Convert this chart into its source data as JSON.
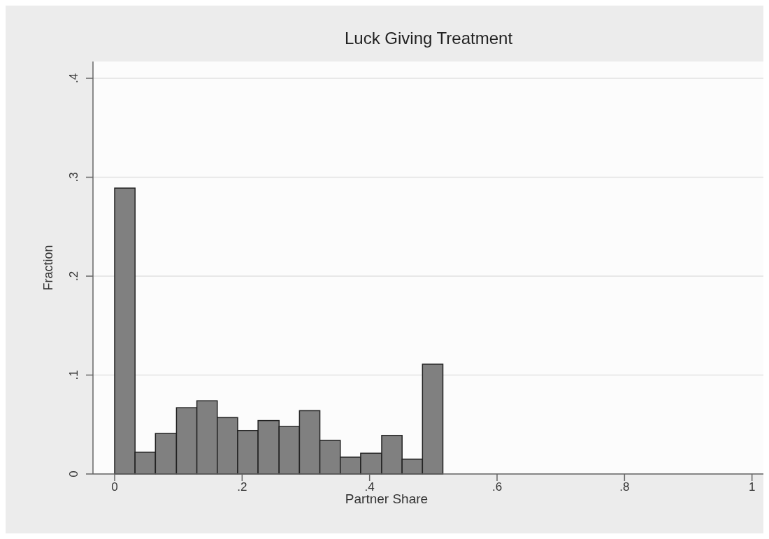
{
  "chart_data": {
    "type": "histogram",
    "title": "Luck Giving Treatment",
    "xlabel": "Partner Share",
    "ylabel": "Fraction",
    "bins": [
      0,
      0.032,
      0.064,
      0.097,
      0.129,
      0.161,
      0.193,
      0.225,
      0.258,
      0.29,
      0.322,
      0.354,
      0.386,
      0.419,
      0.451,
      0.483,
      0.515
    ],
    "values": [
      0.289,
      0.022,
      0.041,
      0.067,
      0.074,
      0.057,
      0.044,
      0.054,
      0.048,
      0.064,
      0.034,
      0.017,
      0.021,
      0.039,
      0.015,
      0.111
    ],
    "color": "#808080",
    "xlim": [
      -0.034,
      1.019
    ],
    "ylim": [
      0,
      0.4
    ],
    "xticks": [
      {
        "value": 0,
        "label": "0"
      },
      {
        "value": 0.2,
        "label": ".2"
      },
      {
        "value": 0.4,
        "label": ".4"
      },
      {
        "value": 0.6,
        "label": ".6"
      },
      {
        "value": 0.8,
        "label": ".8"
      },
      {
        "value": 1,
        "label": "1"
      }
    ],
    "yticks": [
      {
        "value": 0,
        "label": "0"
      },
      {
        "value": 0.1,
        "label": ".1"
      },
      {
        "value": 0.2,
        "label": ".2"
      },
      {
        "value": 0.3,
        "label": ".3"
      },
      {
        "value": 0.4,
        "label": ".4"
      }
    ],
    "grid": "y"
  }
}
